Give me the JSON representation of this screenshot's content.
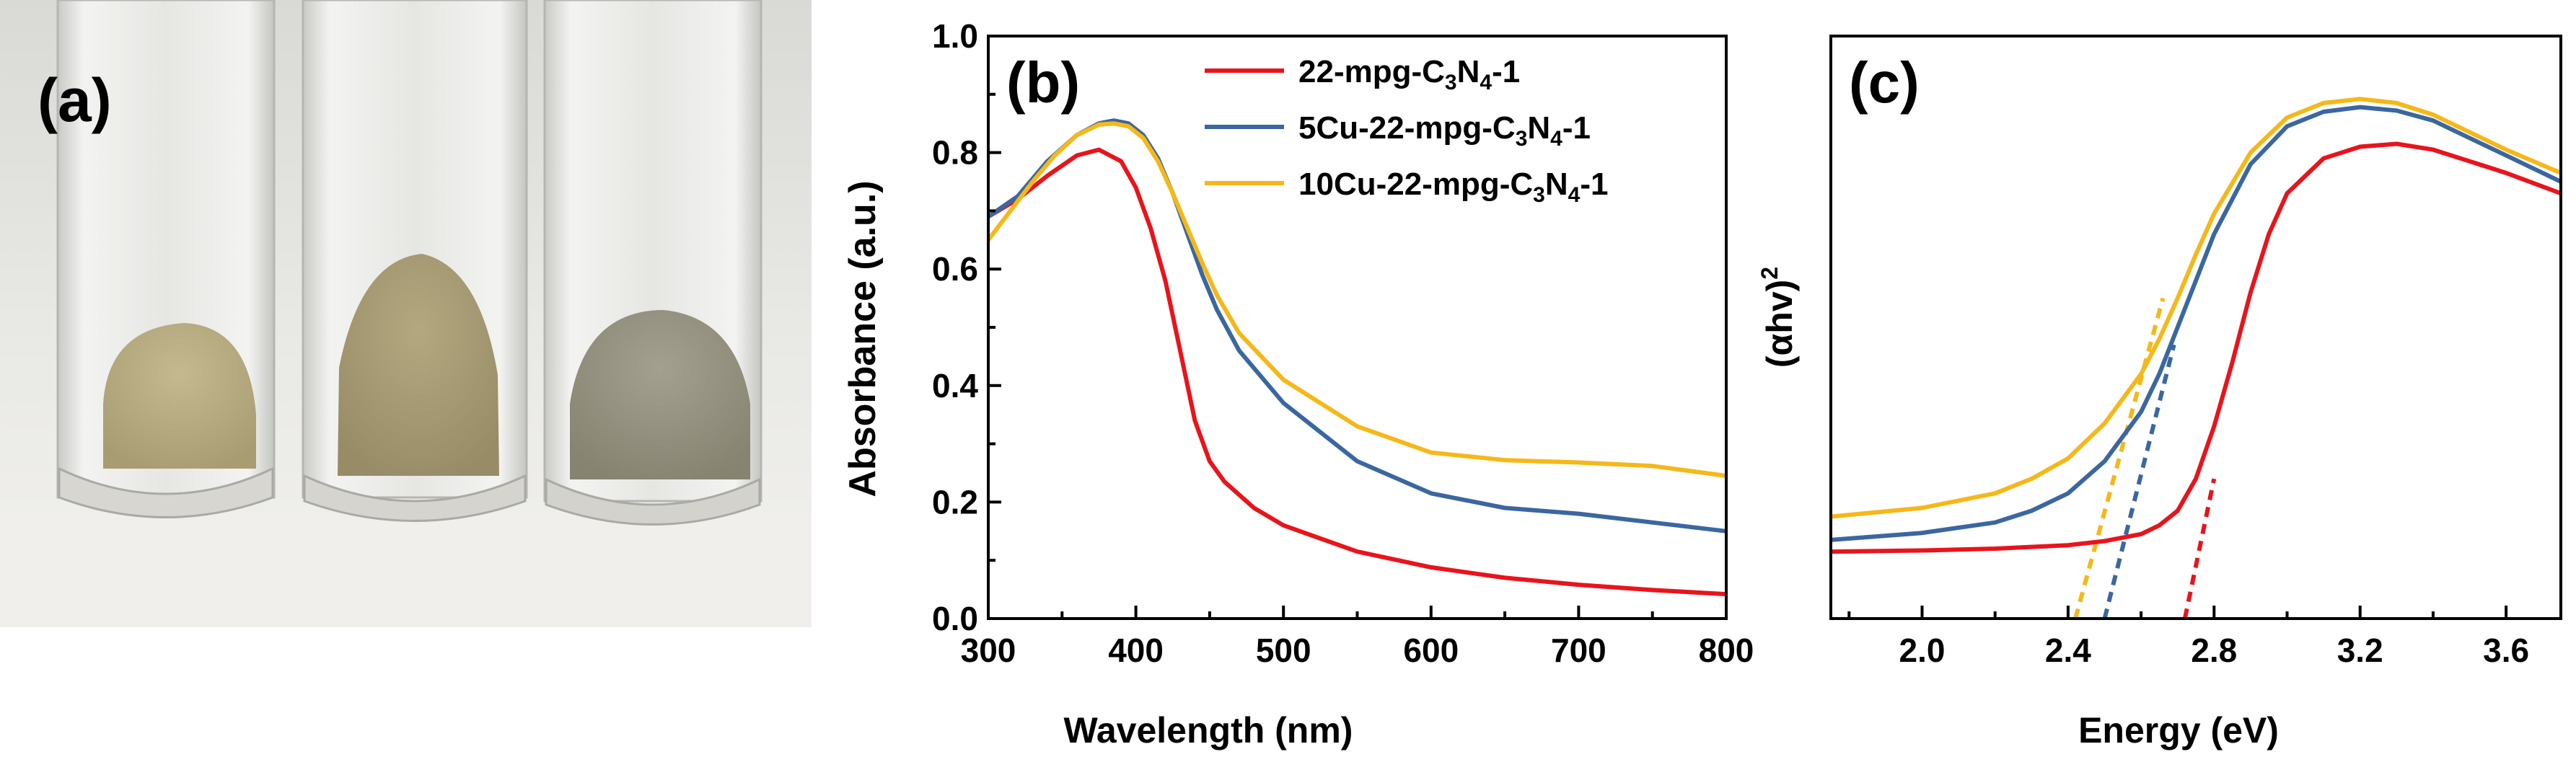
{
  "panels": {
    "a": {
      "label": "(a)",
      "photo_vials": [
        "vial-1",
        "vial-2",
        "vial-3"
      ]
    },
    "b": {
      "label": "(b)"
    },
    "c": {
      "label": "(c)"
    }
  },
  "colors": {
    "series_red": "#e8141c",
    "series_blue": "#3b67a0",
    "series_yellow": "#f5b819",
    "powder_1": "#b7ab82",
    "powder_2": "#a79c76",
    "powder_3": "#979382"
  },
  "chart_data": [
    {
      "id": "b",
      "type": "line",
      "title": "",
      "panel_label": "(b)",
      "xlabel": "Wavelength (nm)",
      "ylabel": "Absorbance (a.u.)",
      "xlim": [
        300,
        800
      ],
      "ylim": [
        0.0,
        1.0
      ],
      "xticks": [
        300,
        400,
        500,
        600,
        700,
        800
      ],
      "yticks": [
        0.0,
        0.2,
        0.4,
        0.6,
        0.8,
        1.0
      ],
      "xtick_labels": [
        "300",
        "400",
        "500",
        "600",
        "700",
        "800"
      ],
      "ytick_labels": [
        "0.0",
        "0.2",
        "0.4",
        "0.6",
        "0.8",
        "1.0"
      ],
      "legend_position": "top-right",
      "series": [
        {
          "name": "22-mpg-C3N4-1",
          "label_parts": [
            "22-mpg-C",
            "3",
            "N",
            "4",
            "-1"
          ],
          "color": "#e8141c",
          "x": [
            300,
            320,
            340,
            360,
            375,
            390,
            400,
            410,
            420,
            430,
            440,
            450,
            460,
            480,
            500,
            550,
            600,
            650,
            700,
            750,
            800
          ],
          "y": [
            0.69,
            0.72,
            0.76,
            0.795,
            0.805,
            0.785,
            0.74,
            0.67,
            0.58,
            0.46,
            0.34,
            0.27,
            0.235,
            0.19,
            0.16,
            0.115,
            0.088,
            0.07,
            0.058,
            0.049,
            0.042
          ]
        },
        {
          "name": "5Cu-22-mpg-C3N4-1",
          "label_parts": [
            "5Cu-22-mpg-C",
            "3",
            "N",
            "4",
            "-1"
          ],
          "color": "#3b67a0",
          "x": [
            300,
            320,
            340,
            360,
            375,
            385,
            395,
            405,
            415,
            425,
            435,
            445,
            455,
            470,
            500,
            550,
            600,
            650,
            700,
            750,
            800
          ],
          "y": [
            0.69,
            0.725,
            0.785,
            0.83,
            0.85,
            0.855,
            0.85,
            0.83,
            0.79,
            0.73,
            0.66,
            0.59,
            0.53,
            0.46,
            0.37,
            0.27,
            0.215,
            0.19,
            0.18,
            0.165,
            0.15
          ]
        },
        {
          "name": "10Cu-22-mpg-C3N4-1",
          "label_parts": [
            "10Cu-22-mpg-C",
            "3",
            "N",
            "4",
            "-1"
          ],
          "color": "#f5b819",
          "x": [
            300,
            315,
            330,
            345,
            360,
            375,
            385,
            395,
            405,
            415,
            425,
            435,
            445,
            455,
            470,
            500,
            550,
            600,
            650,
            700,
            750,
            800
          ],
          "y": [
            0.65,
            0.7,
            0.75,
            0.795,
            0.83,
            0.848,
            0.85,
            0.845,
            0.825,
            0.785,
            0.73,
            0.67,
            0.61,
            0.555,
            0.49,
            0.41,
            0.33,
            0.285,
            0.272,
            0.268,
            0.262,
            0.245
          ]
        }
      ]
    },
    {
      "id": "c",
      "type": "line",
      "title": "",
      "panel_label": "(c)",
      "xlabel": "Energy (eV)",
      "ylabel": "(αhν)²",
      "ylabel_parts": [
        "(",
        "α",
        "hv)",
        "2"
      ],
      "xlim": [
        1.75,
        3.75
      ],
      "ylim": [
        0.0,
        1.0
      ],
      "xticks": [
        2.0,
        2.4,
        2.8,
        3.2,
        3.6
      ],
      "xtick_labels": [
        "2.0",
        "2.4",
        "2.8",
        "3.2",
        "3.6"
      ],
      "yticks": [],
      "series": [
        {
          "name": "22-mpg-C3N4-1",
          "color": "#e8141c",
          "x": [
            1.75,
            2.0,
            2.2,
            2.4,
            2.5,
            2.6,
            2.65,
            2.7,
            2.75,
            2.8,
            2.85,
            2.9,
            2.95,
            3.0,
            3.1,
            3.2,
            3.3,
            3.4,
            3.5,
            3.6,
            3.75
          ],
          "y": [
            0.115,
            0.117,
            0.12,
            0.126,
            0.133,
            0.145,
            0.16,
            0.185,
            0.24,
            0.33,
            0.44,
            0.56,
            0.66,
            0.73,
            0.79,
            0.81,
            0.815,
            0.805,
            0.785,
            0.765,
            0.73
          ]
        },
        {
          "name": "5Cu-22-mpg-C3N4-1",
          "color": "#3b67a0",
          "x": [
            1.75,
            2.0,
            2.2,
            2.3,
            2.4,
            2.5,
            2.6,
            2.65,
            2.7,
            2.75,
            2.8,
            2.9,
            3.0,
            3.1,
            3.2,
            3.3,
            3.4,
            3.5,
            3.6,
            3.75
          ],
          "y": [
            0.135,
            0.147,
            0.165,
            0.185,
            0.215,
            0.27,
            0.355,
            0.42,
            0.5,
            0.58,
            0.66,
            0.78,
            0.845,
            0.87,
            0.878,
            0.872,
            0.855,
            0.825,
            0.795,
            0.75
          ]
        },
        {
          "name": "10Cu-22-mpg-C3N4-1",
          "color": "#f5b819",
          "x": [
            1.75,
            2.0,
            2.2,
            2.3,
            2.4,
            2.5,
            2.6,
            2.65,
            2.7,
            2.75,
            2.8,
            2.9,
            3.0,
            3.1,
            3.2,
            3.3,
            3.4,
            3.5,
            3.6,
            3.75
          ],
          "y": [
            0.175,
            0.19,
            0.215,
            0.24,
            0.275,
            0.335,
            0.42,
            0.48,
            0.55,
            0.625,
            0.695,
            0.8,
            0.86,
            0.885,
            0.892,
            0.885,
            0.865,
            0.835,
            0.805,
            0.765
          ]
        }
      ],
      "tangents": [
        {
          "series": "22-mpg-C3N4-1",
          "color": "#e8141c",
          "from": [
            2.72,
            0.0
          ],
          "to": [
            2.8,
            0.24
          ]
        },
        {
          "series": "5Cu-22-mpg-C3N4-1",
          "color": "#3b67a0",
          "from": [
            2.5,
            0.0
          ],
          "to": [
            2.69,
            0.47
          ]
        },
        {
          "series": "10Cu-22-mpg-C3N4-1",
          "color": "#f5b819",
          "from": [
            2.42,
            0.0
          ],
          "to": [
            2.66,
            0.55
          ]
        }
      ]
    }
  ]
}
